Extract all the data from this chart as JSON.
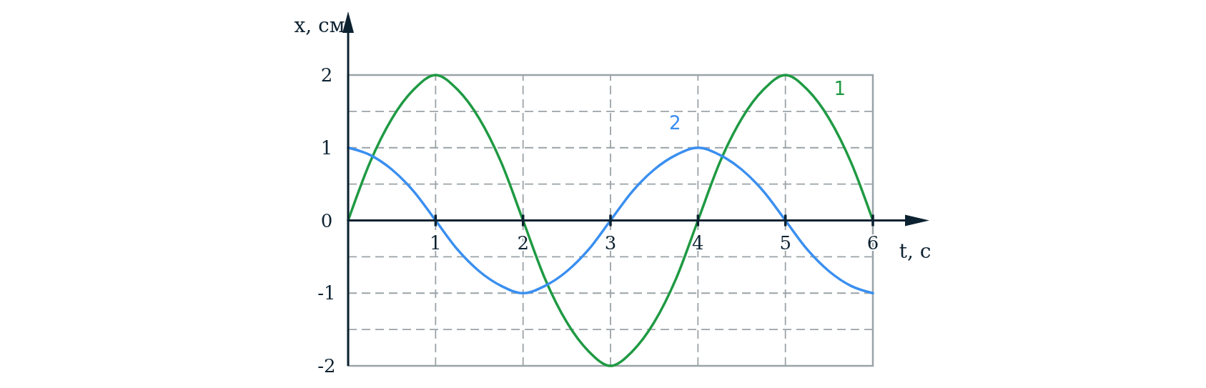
{
  "chart_data": {
    "type": "line",
    "xlabel": "t, с",
    "ylabel": "x, см",
    "x": [
      0,
      0.25,
      0.5,
      0.75,
      1,
      1.25,
      1.5,
      1.75,
      2,
      2.25,
      2.5,
      2.75,
      3,
      3.25,
      3.5,
      3.75,
      4,
      4.25,
      4.5,
      4.75,
      5,
      5.25,
      5.5,
      5.75,
      6
    ],
    "series": [
      {
        "name": "1",
        "color": "#1f9a43",
        "values": [
          0,
          0.8,
          1.4,
          1.8,
          2,
          1.8,
          1.4,
          0.8,
          0,
          -0.8,
          -1.4,
          -1.8,
          -2,
          -1.8,
          -1.4,
          -0.8,
          0,
          0.8,
          1.4,
          1.8,
          2,
          1.8,
          1.4,
          0.8,
          0
        ]
      },
      {
        "name": "2",
        "color": "#3a8ff0",
        "values": [
          1,
          0.9,
          0.7,
          0.4,
          0,
          -0.4,
          -0.7,
          -0.9,
          -1,
          -0.9,
          -0.7,
          -0.4,
          0,
          0.4,
          0.7,
          0.9,
          1,
          0.9,
          0.7,
          0.4,
          0,
          -0.4,
          -0.7,
          -0.9,
          -1
        ]
      }
    ],
    "xlim": [
      0,
      6
    ],
    "xticks": [
      1,
      2,
      3,
      4,
      5,
      6
    ],
    "ylim": [
      -2,
      2
    ],
    "yticks": [
      {
        "value": -2,
        "label": "-2"
      },
      {
        "value": -1.5,
        "label": null
      },
      {
        "value": -1,
        "label": "-1"
      },
      {
        "value": -0.5,
        "label": null
      },
      0,
      {
        "value": 0.5,
        "label": null
      },
      1,
      {
        "value": 1.5,
        "label": null
      },
      2
    ],
    "grid": true,
    "marker": "none",
    "line_style": "solid"
  }
}
